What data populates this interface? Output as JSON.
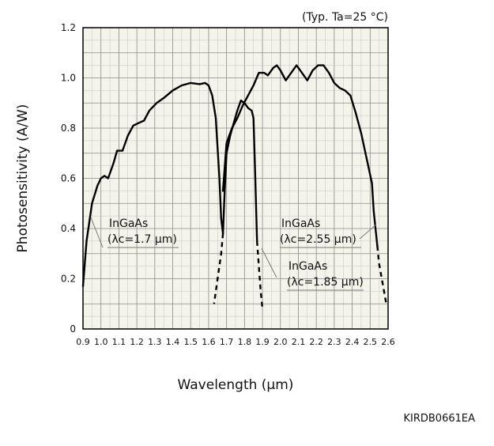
{
  "chart_data": {
    "type": "line",
    "note": "(Typ. Ta=25 °C)",
    "xlabel": "Wavelength (μm)",
    "ylabel": "Photosensitivity (A/W)",
    "xlim": [
      0.9,
      2.6
    ],
    "ylim": [
      0,
      1.2
    ],
    "xticks": [
      "0.9",
      "1.0",
      "1.1",
      "1.2",
      "1.3",
      "1.4",
      "1.5",
      "1.6",
      "1.7",
      "1.8",
      "1.9",
      "2.0",
      "2.1",
      "2.2",
      "2.3",
      "2.4",
      "2.5",
      "2.6"
    ],
    "yticks": [
      "0",
      "0.2",
      "0.4",
      "0.6",
      "0.8",
      "1.0",
      "1.2"
    ],
    "grid": true,
    "series": [
      {
        "name": "InGaAs (λc=1.7 μm)",
        "label_line1": "InGaAs",
        "label_line2": "(λc=1.7 μm)",
        "points": [
          [
            0.9,
            0.17
          ],
          [
            0.92,
            0.35
          ],
          [
            0.95,
            0.5
          ],
          [
            0.98,
            0.57
          ],
          [
            1.0,
            0.6
          ],
          [
            1.02,
            0.61
          ],
          [
            1.04,
            0.6
          ],
          [
            1.07,
            0.66
          ],
          [
            1.09,
            0.71
          ],
          [
            1.12,
            0.71
          ],
          [
            1.15,
            0.77
          ],
          [
            1.18,
            0.81
          ],
          [
            1.21,
            0.82
          ],
          [
            1.24,
            0.83
          ],
          [
            1.27,
            0.87
          ],
          [
            1.31,
            0.9
          ],
          [
            1.35,
            0.92
          ],
          [
            1.4,
            0.95
          ],
          [
            1.45,
            0.97
          ],
          [
            1.5,
            0.98
          ],
          [
            1.55,
            0.975
          ],
          [
            1.58,
            0.98
          ],
          [
            1.6,
            0.97
          ],
          [
            1.62,
            0.93
          ],
          [
            1.64,
            0.84
          ],
          [
            1.66,
            0.6
          ],
          [
            1.67,
            0.44
          ],
          [
            1.68,
            0.38
          ]
        ],
        "tail": [
          [
            1.68,
            0.38
          ],
          [
            1.67,
            0.3
          ],
          [
            1.65,
            0.2
          ],
          [
            1.63,
            0.1
          ]
        ]
      },
      {
        "name": "InGaAs (λc=1.85 μm)",
        "label_line1": "InGaAs",
        "label_line2": "(λc=1.85 μm)",
        "points": [
          [
            1.68,
            0.38
          ],
          [
            1.69,
            0.56
          ],
          [
            1.7,
            0.7
          ],
          [
            1.72,
            0.77
          ],
          [
            1.74,
            0.82
          ],
          [
            1.76,
            0.87
          ],
          [
            1.78,
            0.91
          ],
          [
            1.8,
            0.9
          ],
          [
            1.82,
            0.88
          ],
          [
            1.84,
            0.87
          ],
          [
            1.85,
            0.84
          ],
          [
            1.86,
            0.6
          ],
          [
            1.87,
            0.35
          ]
        ],
        "tail": [
          [
            1.87,
            0.35
          ],
          [
            1.88,
            0.25
          ],
          [
            1.89,
            0.15
          ],
          [
            1.9,
            0.08
          ]
        ]
      },
      {
        "name": "InGaAs (λc=2.55 μm)",
        "label_line1": "InGaAs",
        "label_line2": "(λc=2.55 μm)",
        "points": [
          [
            1.68,
            0.55
          ],
          [
            1.7,
            0.74
          ],
          [
            1.73,
            0.8
          ],
          [
            1.76,
            0.84
          ],
          [
            1.79,
            0.89
          ],
          [
            1.82,
            0.93
          ],
          [
            1.85,
            0.97
          ],
          [
            1.88,
            1.02
          ],
          [
            1.91,
            1.02
          ],
          [
            1.93,
            1.01
          ],
          [
            1.96,
            1.04
          ],
          [
            1.98,
            1.05
          ],
          [
            2.0,
            1.03
          ],
          [
            2.03,
            0.99
          ],
          [
            2.06,
            1.02
          ],
          [
            2.09,
            1.05
          ],
          [
            2.12,
            1.02
          ],
          [
            2.15,
            0.99
          ],
          [
            2.18,
            1.03
          ],
          [
            2.21,
            1.05
          ],
          [
            2.24,
            1.05
          ],
          [
            2.27,
            1.02
          ],
          [
            2.3,
            0.98
          ],
          [
            2.33,
            0.96
          ],
          [
            2.36,
            0.95
          ],
          [
            2.39,
            0.93
          ],
          [
            2.42,
            0.86
          ],
          [
            2.45,
            0.78
          ],
          [
            2.48,
            0.68
          ],
          [
            2.51,
            0.58
          ],
          [
            2.52,
            0.47
          ],
          [
            2.53,
            0.4
          ],
          [
            2.54,
            0.33
          ]
        ],
        "tail": [
          [
            2.54,
            0.33
          ],
          [
            2.55,
            0.26
          ],
          [
            2.57,
            0.18
          ],
          [
            2.59,
            0.1
          ]
        ]
      }
    ]
  },
  "footer_code": "KIRDB0661EA"
}
